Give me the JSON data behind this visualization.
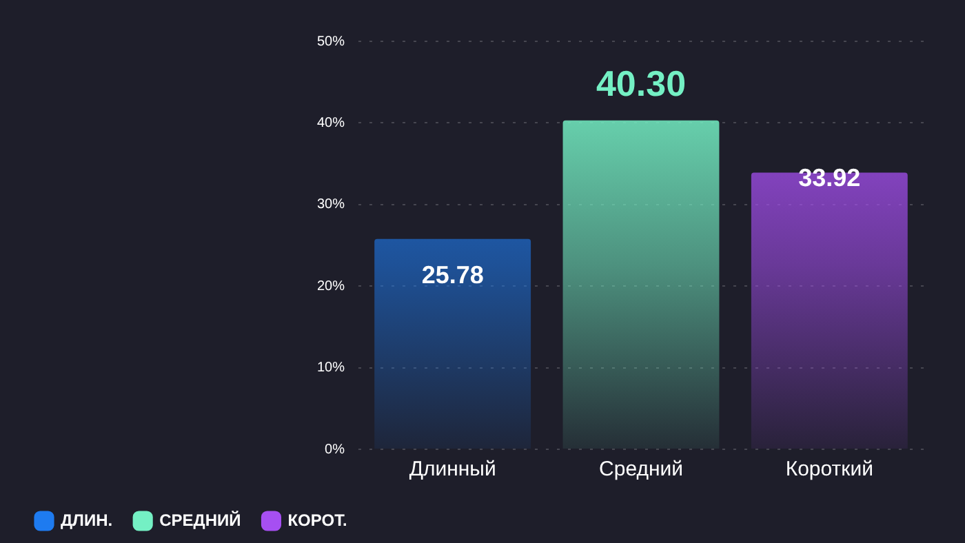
{
  "chart_data": {
    "type": "bar",
    "categories": [
      "Длинный",
      "Средний",
      "Короткий"
    ],
    "series": [
      {
        "name": "ДЛИН.",
        "color": "#1e7bf0",
        "values": [
          25.78,
          null,
          null
        ]
      },
      {
        "name": "СРЕДНИЙ",
        "color": "#74f0c4",
        "values": [
          null,
          40.3,
          null
        ]
      },
      {
        "name": "КОРОТ.",
        "color": "#a64ff2",
        "values": [
          null,
          null,
          33.92
        ]
      }
    ],
    "value_labels": [
      "25.78",
      "40.30",
      "33.92"
    ],
    "ylim": [
      0,
      50
    ],
    "yticks": [
      {
        "value": 0,
        "label": "0%"
      },
      {
        "value": 10,
        "label": "10%"
      },
      {
        "value": 20,
        "label": "20%"
      },
      {
        "value": 30,
        "label": "30%"
      },
      {
        "value": 40,
        "label": "40%"
      },
      {
        "value": 50,
        "label": "50%"
      }
    ],
    "grid": "y",
    "legend": "bottom left"
  }
}
